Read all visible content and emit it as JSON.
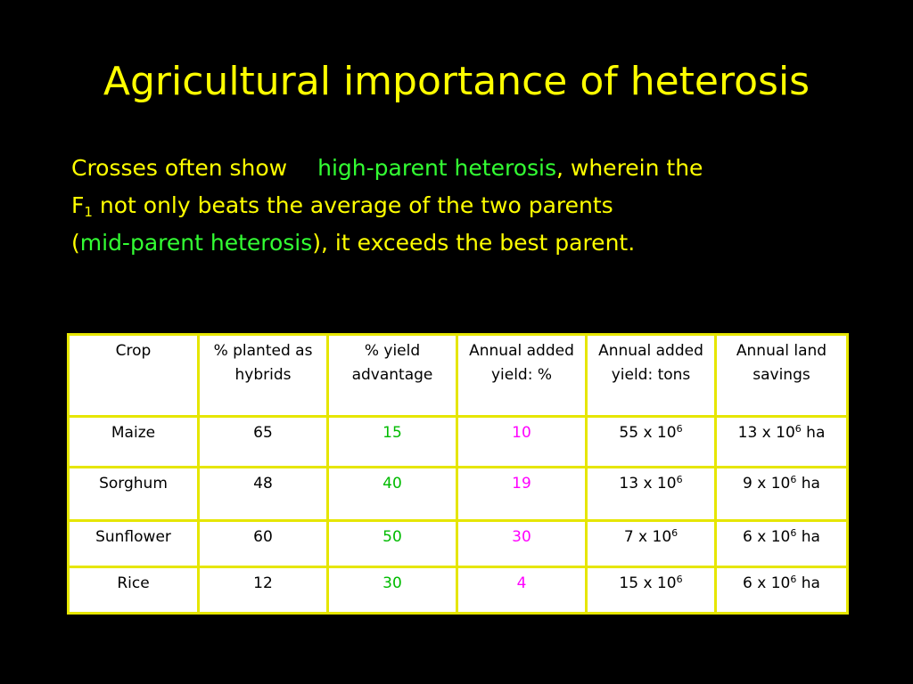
{
  "slide": {
    "title": "Agricultural importance of heterosis"
  },
  "body": {
    "line1_before": "Crosses often show",
    "line1_highlight": "high-parent heterosis",
    "line1_after": ", wherein the",
    "line2_f": "F",
    "line2_sub": "1",
    "line2_after": " not only beats the average of the two parents",
    "line3_open": "(",
    "line3_highlight": "mid-parent  heterosis",
    "line3_after": "), it exceeds the best parent."
  },
  "table": {
    "headers": [
      "Crop",
      "% planted as hybrids",
      "% yield advantage",
      "Annual added yield:  %",
      "Annual added yield: tons",
      "Annual land savings"
    ],
    "rows": [
      {
        "crop": "Maize",
        "planted": "65",
        "yield_adv": "15",
        "added_pct": "10",
        "tons_base": "55 x 10",
        "tons_exp": "6",
        "land_base": "13 x 10",
        "land_exp": "6",
        "land_unit": " ha"
      },
      {
        "crop": "Sorghum",
        "planted": "48",
        "yield_adv": "40",
        "added_pct": "19",
        "tons_base": "13 x 10",
        "tons_exp": "6",
        "land_base": "9 x 10",
        "land_exp": "6",
        "land_unit": " ha"
      },
      {
        "crop": "Sunflower",
        "planted": "60",
        "yield_adv": "50",
        "added_pct": "30",
        "tons_base": "7 x 10",
        "tons_exp": "6",
        "land_base": "6 x 10",
        "land_exp": "6",
        "land_unit": " ha"
      },
      {
        "crop": "Rice",
        "planted": "12",
        "yield_adv": "30",
        "added_pct": "4",
        "tons_base": "15 x 10",
        "tons_exp": "6",
        "land_base": "6 x 10",
        "land_exp": "6",
        "land_unit": " ha"
      }
    ]
  },
  "colors": {
    "background": "#000000",
    "title_text": "#ffff00",
    "highlight_green": "#33ff33",
    "table_border": "#e6e600",
    "yield_advantage_values": "#00bb00",
    "added_yield_pct_values": "#ff00ff"
  }
}
